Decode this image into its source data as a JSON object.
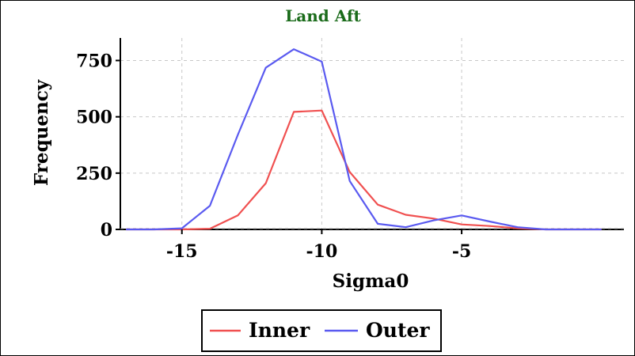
{
  "chart_data": {
    "type": "line",
    "title": "Land Aft",
    "title_color": "#1a6b1a",
    "xlabel": "Sigma0",
    "ylabel": "Frequency",
    "xlim": [
      -17.2,
      0.8
    ],
    "ylim": [
      0,
      850
    ],
    "x_ticks": [
      -15,
      -10,
      -5
    ],
    "x_tick_labels": [
      "-15",
      "-10",
      "-5"
    ],
    "y_ticks": [
      0,
      250,
      500,
      750
    ],
    "y_tick_labels": [
      "0",
      "250",
      "500",
      "750"
    ],
    "grid": true,
    "legend_position": "bottom",
    "series": [
      {
        "name": "Inner",
        "color": "#f05050",
        "x": [
          -17,
          -16,
          -15,
          -14,
          -13,
          -12,
          -11,
          -10,
          -9,
          -8,
          -7,
          -6,
          -5,
          -4,
          -3,
          -2,
          -1,
          0
        ],
        "y": [
          0,
          0,
          0,
          3,
          62,
          205,
          522,
          528,
          255,
          110,
          65,
          48,
          22,
          15,
          5,
          0,
          0,
          0
        ]
      },
      {
        "name": "Outer",
        "color": "#5a5af0",
        "x": [
          -17,
          -16,
          -15,
          -14,
          -13,
          -12,
          -11,
          -10,
          -9,
          -8,
          -7,
          -6,
          -5,
          -4,
          -3,
          -2,
          -1,
          0
        ],
        "y": [
          0,
          0,
          5,
          105,
          420,
          718,
          800,
          745,
          215,
          25,
          10,
          40,
          62,
          35,
          10,
          0,
          0,
          0
        ]
      }
    ]
  }
}
